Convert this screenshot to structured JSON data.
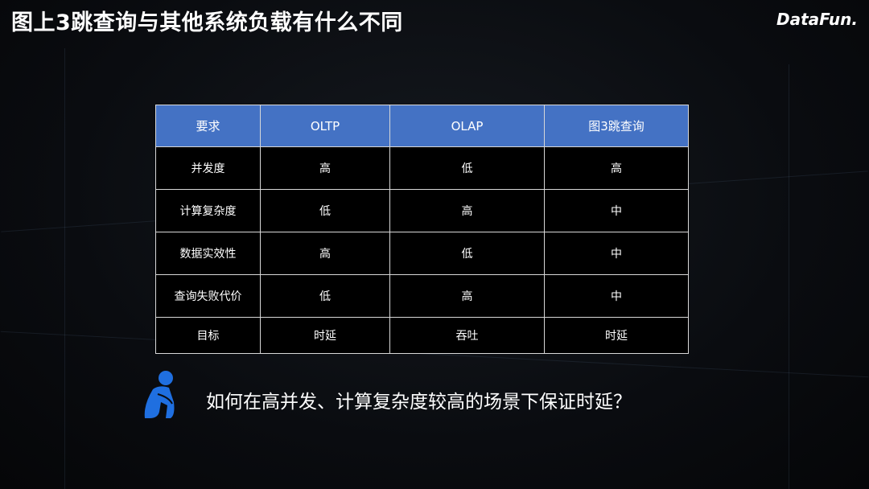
{
  "title": "图上3跳查询与其他系统负载有什么不同",
  "logo": "DataFun.",
  "table": {
    "headers": [
      "要求",
      "OLTP",
      "OLAP",
      "图3跳查询"
    ],
    "rows": [
      [
        "并发度",
        "高",
        "低",
        "高"
      ],
      [
        "计算复杂度",
        "低",
        "高",
        "中"
      ],
      [
        "数据实效性",
        "高",
        "低",
        "中"
      ],
      [
        "查询失败代价",
        "低",
        "高",
        "中"
      ],
      [
        "目标",
        "时延",
        "吞吐",
        "时延"
      ]
    ]
  },
  "question": "如何在高并发、计算复杂度较高的场景下保证时延？",
  "colors": {
    "header": "#4472c4",
    "icon": "#1f6fe0"
  }
}
